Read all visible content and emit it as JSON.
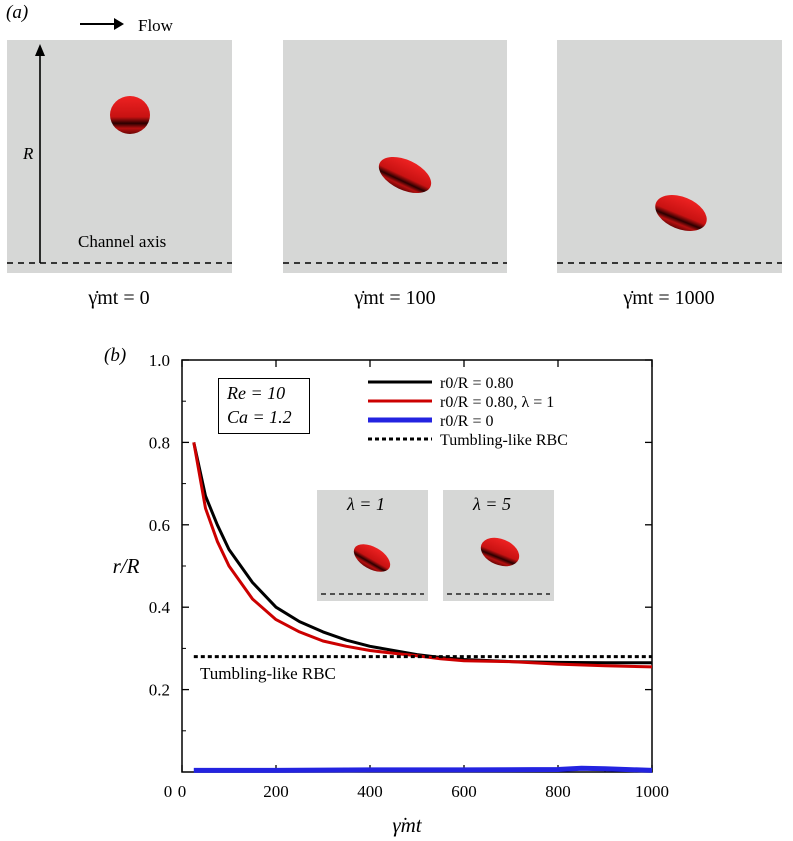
{
  "panel_a": {
    "label": "(a)",
    "flow_label": "Flow",
    "radius_label": "R",
    "axis_label": "Channel axis",
    "snapshots": [
      {
        "time_label": "γ̇mt = 0"
      },
      {
        "time_label": "γ̇mt = 100"
      },
      {
        "time_label": "γ̇mt = 1000"
      }
    ]
  },
  "panel_b": {
    "label": "(b)",
    "params": [
      "Re = 10",
      "Ca = 1.2"
    ],
    "annotation": "Tumbling-like RBC",
    "insets": [
      {
        "label": "λ = 1"
      },
      {
        "label": "λ = 5"
      }
    ]
  },
  "colors": {
    "black_series": "#000000",
    "red_series": "#cc0000",
    "blue_series": "#2323e0",
    "snapshot_bg": "#d6d7d6",
    "rbc": "#d41a1a"
  },
  "chart_data": {
    "type": "line",
    "xlabel": "γ̇mt",
    "ylabel": "r/R",
    "xlim": [
      0,
      1000
    ],
    "ylim": [
      0,
      1.0
    ],
    "xticks": [
      "0",
      "200",
      "400",
      "600",
      "800",
      "1000"
    ],
    "yticks": [
      "0.2",
      "0.4",
      "0.6",
      "0.8",
      "1.0"
    ],
    "legend_position": "top-right",
    "series": [
      {
        "name": "r0/R = 0.80",
        "color": "#000000",
        "x": [
          25,
          50,
          75,
          100,
          150,
          200,
          250,
          300,
          350,
          400,
          450,
          500,
          550,
          600,
          700,
          800,
          900,
          1000
        ],
        "y": [
          0.8,
          0.67,
          0.6,
          0.54,
          0.46,
          0.4,
          0.365,
          0.34,
          0.32,
          0.305,
          0.295,
          0.285,
          0.278,
          0.273,
          0.268,
          0.266,
          0.265,
          0.265
        ]
      },
      {
        "name": "r0/R = 0.80, λ = 1",
        "color": "#cc0000",
        "x": [
          25,
          50,
          75,
          100,
          150,
          200,
          250,
          300,
          350,
          400,
          450,
          500,
          550,
          600,
          700,
          800,
          900,
          1000
        ],
        "y": [
          0.8,
          0.64,
          0.56,
          0.5,
          0.42,
          0.37,
          0.34,
          0.318,
          0.305,
          0.295,
          0.288,
          0.282,
          0.275,
          0.27,
          0.268,
          0.262,
          0.258,
          0.255
        ]
      },
      {
        "name": "r0/R = 0",
        "color": "#2323e0",
        "x": [
          25,
          200,
          400,
          600,
          800,
          850,
          900,
          1000
        ],
        "y": [
          0.004,
          0.004,
          0.005,
          0.005,
          0.006,
          0.009,
          0.008,
          0.004
        ]
      },
      {
        "name": "Tumbling-like RBC",
        "color": "#000000",
        "dashed": true,
        "x": [
          25,
          1000
        ],
        "y": [
          0.28,
          0.28
        ]
      }
    ]
  }
}
